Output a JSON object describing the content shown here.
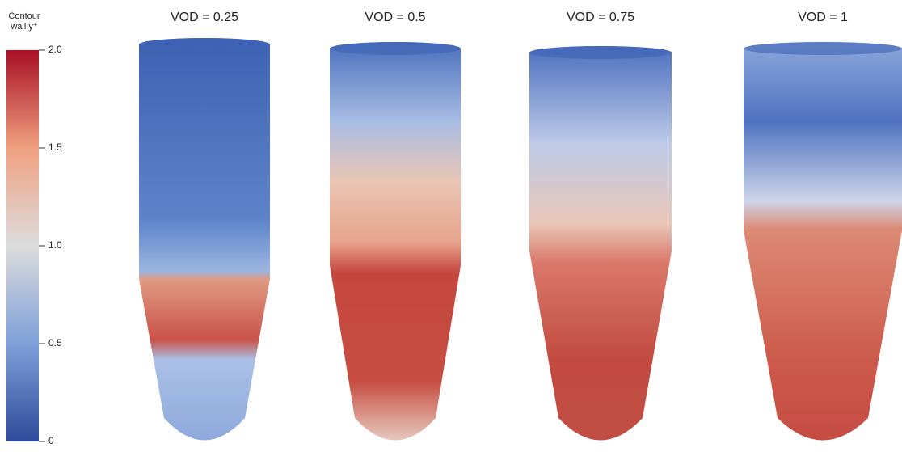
{
  "colorbar": {
    "title": "Contour",
    "label": "wall y⁺",
    "range": [
      0,
      2
    ],
    "ticks": [
      0,
      0.5,
      {
        "value": 1,
        "label": "1.0"
      },
      1.5,
      {
        "value": 2,
        "label": "2.0"
      }
    ]
  },
  "panels": [
    {
      "title": "VOD = 0.25"
    },
    {
      "title": "VOD = 0.5"
    },
    {
      "title": "VOD = 0.75"
    },
    {
      "title": "VOD = 1"
    }
  ]
}
